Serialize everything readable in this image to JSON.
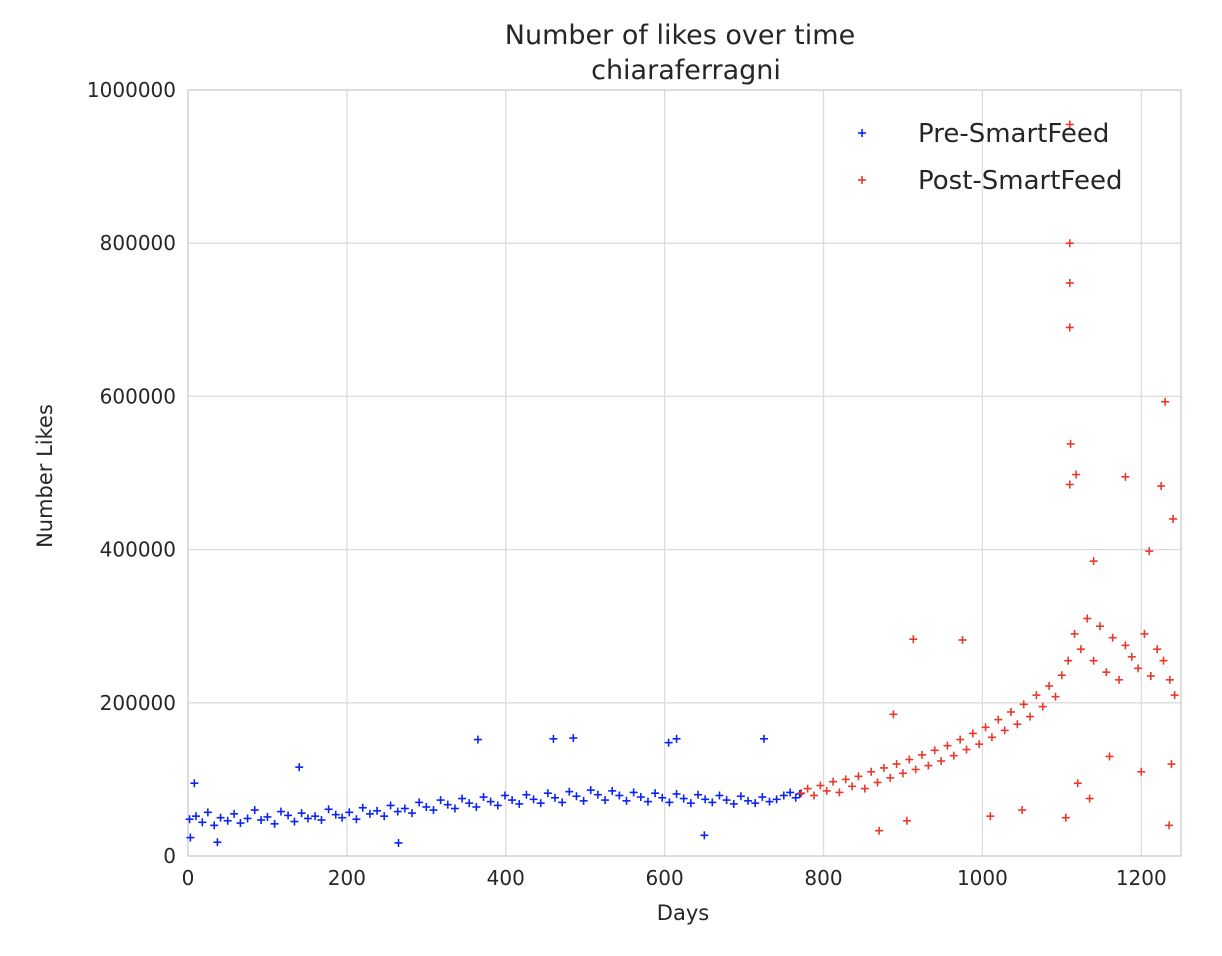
{
  "chart_data": {
    "type": "scatter",
    "title": "Number of likes over time",
    "subtitle": "chiaraferragni",
    "xlabel": "Days",
    "ylabel": "Number Likes",
    "xlim": [
      0,
      1250
    ],
    "ylim": [
      0,
      1000000
    ],
    "xticks": [
      "0",
      "200",
      "400",
      "600",
      "800",
      "1000",
      "1200"
    ],
    "yticks": [
      "0",
      "200000",
      "400000",
      "600000",
      "800000",
      "1000000"
    ],
    "grid": true,
    "legend_position": "top-right",
    "marker": "+",
    "series": [
      {
        "name": "Pre-SmartFeed",
        "color": "#0b24f5",
        "x": [
          2,
          10,
          18,
          25,
          33,
          41,
          50,
          58,
          66,
          75,
          84,
          92,
          100,
          109,
          117,
          126,
          134,
          143,
          151,
          160,
          168,
          177,
          186,
          194,
          203,
          212,
          220,
          229,
          238,
          247,
          255,
          264,
          273,
          282,
          291,
          300,
          309,
          318,
          327,
          336,
          345,
          354,
          363,
          372,
          381,
          390,
          399,
          408,
          417,
          426,
          435,
          444,
          453,
          462,
          471,
          480,
          489,
          498,
          507,
          516,
          525,
          534,
          543,
          552,
          561,
          570,
          579,
          588,
          597,
          606,
          615,
          624,
          633,
          642,
          651,
          660,
          669,
          678,
          687,
          696,
          705,
          714,
          723,
          732,
          741,
          750,
          758,
          765,
          770,
          365,
          460,
          485,
          605,
          615,
          725,
          265,
          140,
          650,
          37,
          3,
          8
        ],
        "y": [
          48000,
          52000,
          44000,
          57000,
          40000,
          50000,
          46000,
          55000,
          43000,
          49000,
          60000,
          47000,
          51000,
          42000,
          58000,
          53000,
          45000,
          56000,
          49000,
          52000,
          47000,
          61000,
          54000,
          50000,
          57000,
          48000,
          63000,
          55000,
          59000,
          52000,
          66000,
          58000,
          62000,
          56000,
          70000,
          64000,
          60000,
          73000,
          67000,
          62000,
          75000,
          69000,
          64000,
          77000,
          71000,
          66000,
          79000,
          73000,
          68000,
          80000,
          74000,
          69000,
          82000,
          76000,
          70000,
          84000,
          78000,
          72000,
          86000,
          80000,
          73000,
          85000,
          79000,
          72000,
          83000,
          77000,
          71000,
          82000,
          76000,
          70000,
          81000,
          75000,
          69000,
          80000,
          74000,
          70000,
          79000,
          73000,
          68000,
          78000,
          72000,
          69000,
          77000,
          71000,
          74000,
          79000,
          83000,
          76000,
          81000,
          152000,
          153000,
          154000,
          148000,
          153000,
          153000,
          17000,
          116000,
          27000,
          18000,
          24000,
          95000
        ]
      },
      {
        "name": "Post-SmartFeed",
        "color": "#e8392d",
        "x": [
          772,
          780,
          788,
          796,
          804,
          812,
          820,
          828,
          836,
          844,
          852,
          860,
          868,
          876,
          884,
          892,
          900,
          908,
          916,
          924,
          932,
          940,
          948,
          956,
          964,
          972,
          980,
          988,
          996,
          1004,
          1012,
          1020,
          1028,
          1036,
          1044,
          1052,
          1060,
          1068,
          1076,
          1084,
          1092,
          1100,
          1108,
          1116,
          1124,
          1132,
          1140,
          1148,
          1156,
          1164,
          1172,
          1180,
          1188,
          1196,
          1204,
          1212,
          1220,
          1228,
          1236,
          1242,
          1110,
          1110,
          1110,
          1110,
          1111,
          1230,
          1110,
          1180,
          1225,
          1240,
          1118,
          1140,
          1210,
          913,
          975,
          888,
          1120,
          1135,
          1200,
          1235,
          1050,
          1010,
          1105,
          1160,
          1238,
          870,
          905
        ],
        "y": [
          82000,
          88000,
          79000,
          92000,
          85000,
          97000,
          83000,
          100000,
          91000,
          104000,
          88000,
          110000,
          96000,
          115000,
          102000,
          120000,
          108000,
          126000,
          113000,
          132000,
          118000,
          138000,
          124000,
          144000,
          131000,
          152000,
          139000,
          160000,
          146000,
          168000,
          155000,
          178000,
          164000,
          188000,
          172000,
          198000,
          182000,
          210000,
          195000,
          222000,
          208000,
          236000,
          255000,
          290000,
          270000,
          310000,
          255000,
          300000,
          240000,
          285000,
          230000,
          275000,
          260000,
          245000,
          290000,
          235000,
          270000,
          255000,
          230000,
          210000,
          955000,
          800000,
          748000,
          690000,
          538000,
          593000,
          485000,
          495000,
          483000,
          440000,
          498000,
          385000,
          398000,
          283000,
          282000,
          185000,
          95000,
          75000,
          110000,
          40000,
          60000,
          52000,
          50000,
          130000,
          120000,
          33000,
          46000
        ]
      }
    ]
  }
}
